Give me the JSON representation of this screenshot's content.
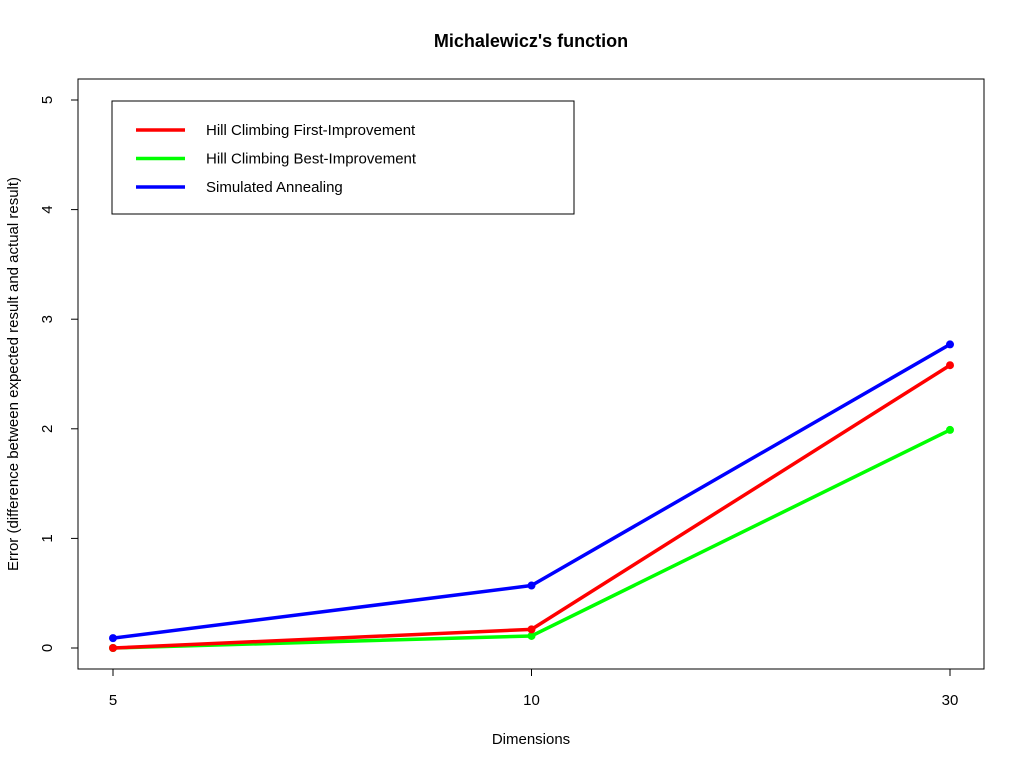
{
  "chart_data": {
    "type": "line",
    "title": "Michalewicz's function",
    "xlabel": "Dimensions",
    "ylabel": "Error (difference between expected result and actual result)",
    "categories": [
      "5",
      "10",
      "30"
    ],
    "ylim": [
      0,
      5
    ],
    "yticks": [
      0,
      1,
      2,
      3,
      4,
      5
    ],
    "legend_position": "top-left",
    "series": [
      {
        "name": "Hill Climbing First-Improvement",
        "color": "#ff0000",
        "values": [
          0.0,
          0.17,
          2.58
        ]
      },
      {
        "name": "Hill Climbing Best-Improvement",
        "color": "#00ff00",
        "values": [
          0.0,
          0.11,
          1.99
        ]
      },
      {
        "name": "Simulated Annealing",
        "color": "#0000ff",
        "values": [
          0.09,
          0.57,
          2.77
        ]
      }
    ]
  }
}
